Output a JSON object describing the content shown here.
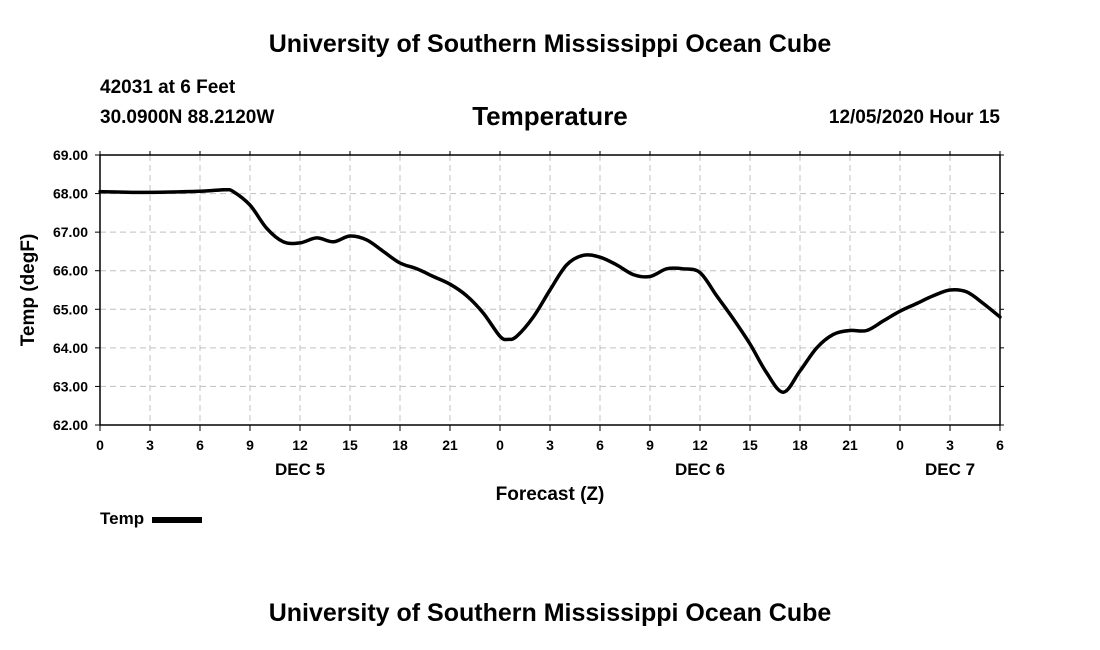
{
  "header": {
    "title": "University of Southern Mississippi Ocean Cube",
    "station": "42031 at 6 Feet",
    "coordinates": "30.0900N 88.2120W",
    "subtitle": "Temperature",
    "datetime": "12/05/2020 Hour 15"
  },
  "footer": {
    "title": "University of Southern Mississippi Ocean Cube"
  },
  "legend": {
    "label": "Temp"
  },
  "colors": {
    "line": "#000000",
    "grid": "#c0c0c0",
    "axis": "#000000"
  },
  "chart_data": {
    "type": "line",
    "title": "Temperature",
    "xlabel": "Forecast (Z)",
    "ylabel": "Temp (degF)",
    "xlim": [
      0,
      54
    ],
    "ylim": [
      62,
      69
    ],
    "grid": true,
    "x_ticks": [
      0,
      3,
      6,
      9,
      12,
      15,
      18,
      21,
      24,
      27,
      30,
      33,
      36,
      39,
      42,
      45,
      48,
      51,
      54
    ],
    "x_tick_labels": [
      "0",
      "3",
      "6",
      "9",
      "12",
      "15",
      "18",
      "21",
      "0",
      "3",
      "6",
      "9",
      "12",
      "15",
      "18",
      "21",
      "0",
      "3",
      "6"
    ],
    "y_ticks": [
      62,
      63,
      64,
      65,
      66,
      67,
      68,
      69
    ],
    "y_tick_labels": [
      "62.00",
      "63.00",
      "64.00",
      "65.00",
      "66.00",
      "67.00",
      "68.00",
      "69.00"
    ],
    "day_labels": [
      {
        "x": 12,
        "label": "DEC 5"
      },
      {
        "x": 36,
        "label": "DEC 6"
      },
      {
        "x": 51,
        "label": "DEC 7"
      }
    ],
    "series": [
      {
        "name": "Temp",
        "x": [
          0,
          3,
          6,
          7.5,
          8,
          9,
          10,
          11,
          12,
          13,
          14,
          15,
          16,
          17,
          18,
          19,
          20,
          21,
          22,
          23,
          24,
          24.5,
          25,
          26,
          27,
          28,
          29,
          30,
          31,
          32,
          33,
          34,
          35,
          36,
          37,
          38,
          39,
          40,
          41,
          42,
          43,
          44,
          45,
          46,
          47,
          48,
          49,
          50,
          51,
          52,
          53,
          54
        ],
        "values": [
          68.05,
          68.03,
          68.06,
          68.1,
          68.05,
          67.7,
          67.1,
          66.75,
          66.72,
          66.85,
          66.75,
          66.9,
          66.8,
          66.5,
          66.2,
          66.05,
          65.85,
          65.65,
          65.35,
          64.9,
          64.3,
          64.22,
          64.3,
          64.8,
          65.5,
          66.15,
          66.4,
          66.35,
          66.15,
          65.9,
          65.85,
          66.05,
          66.05,
          65.95,
          65.35,
          64.75,
          64.1,
          63.35,
          62.85,
          63.4,
          64.0,
          64.35,
          64.45,
          64.45,
          64.7,
          64.95,
          65.15,
          65.35,
          65.5,
          65.45,
          65.15,
          64.8
        ]
      }
    ]
  }
}
